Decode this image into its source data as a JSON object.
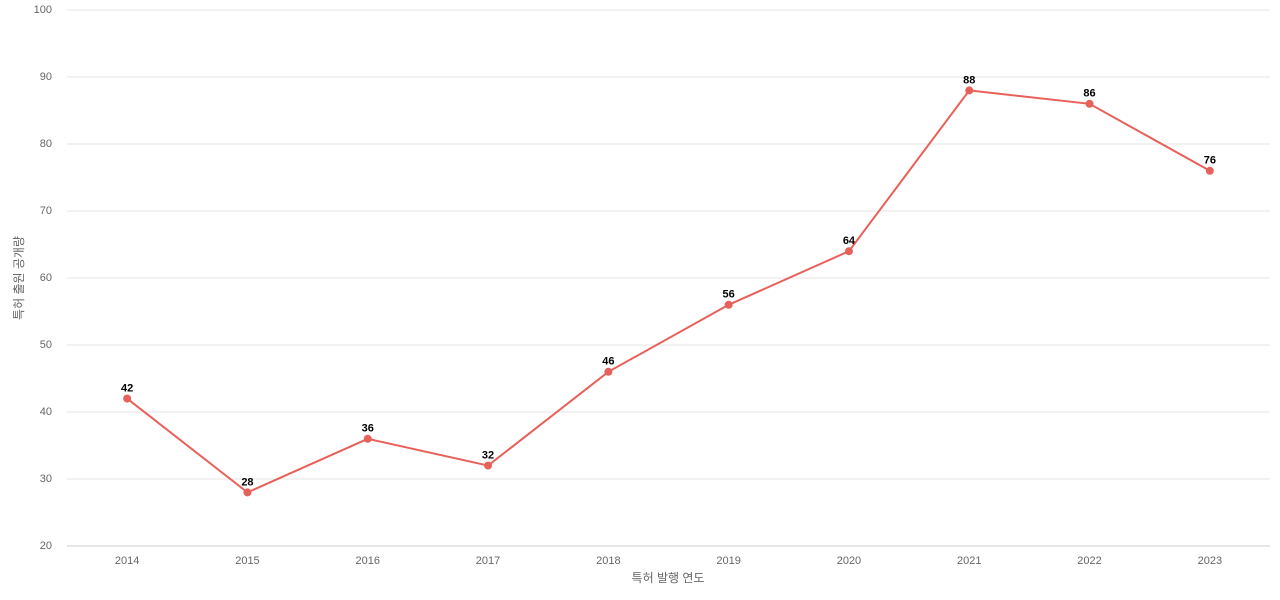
{
  "chart_data": {
    "type": "line",
    "x_label": "특허 발행 연도",
    "y_label": "특허 출원 공개량",
    "categories": [
      "2014",
      "2015",
      "2016",
      "2017",
      "2018",
      "2019",
      "2020",
      "2021",
      "2022",
      "2023"
    ],
    "series": [
      {
        "color": "#e8605a",
        "values": [
          42,
          28,
          36,
          32,
          46,
          56,
          64,
          88,
          86,
          76
        ]
      }
    ],
    "ylim": [
      20,
      100
    ],
    "yticks": [
      20,
      30,
      40,
      50,
      60,
      70,
      80,
      90,
      100
    ],
    "grid": true
  }
}
